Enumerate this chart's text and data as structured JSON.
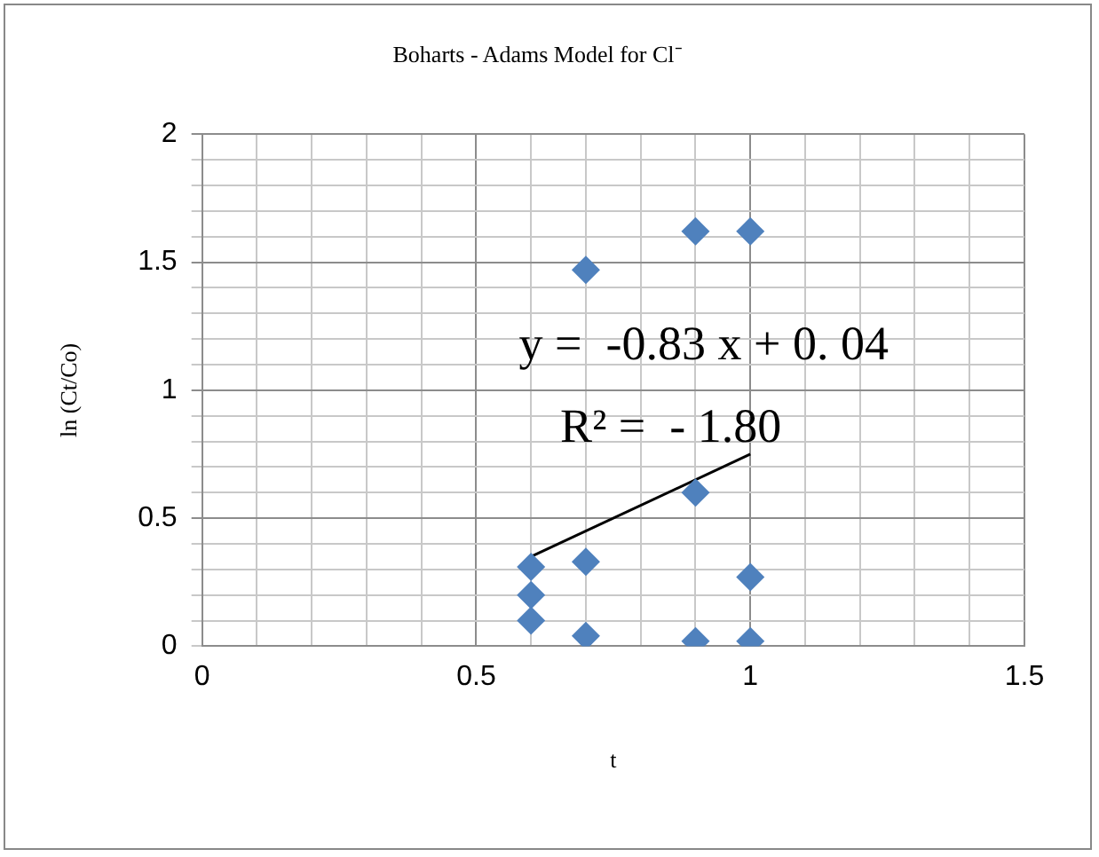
{
  "chart_data": {
    "type": "scatter",
    "title": "Boharts - Adams Model for Cl⁻",
    "xlabel": "t",
    "ylabel": "ln (Ct/Co)",
    "series": [
      {
        "color": "#4f81bd",
        "x": [
          0.6,
          0.6,
          0.6,
          0.7,
          0.7,
          0.7,
          0.9,
          0.9,
          0.9,
          1.0,
          1.0,
          1.0
        ],
        "values": [
          0.31,
          0.2,
          0.1,
          1.47,
          0.33,
          0.04,
          1.62,
          0.6,
          0.02,
          1.62,
          0.27,
          0.02
        ]
      },
      {
        "type": "line",
        "color": "#000000",
        "x": [
          0.6,
          1.0
        ],
        "values": [
          0.35,
          0.75
        ],
        "marker": "none"
      }
    ],
    "marker": "diamond",
    "annotations": [
      "y =  -0.83 x + 0. 04",
      "R² =  - 1.80"
    ],
    "xlim": [
      0,
      1.5
    ],
    "xticks": [
      0,
      {
        "value": 0.1,
        "label": null
      },
      {
        "value": 0.2,
        "label": null
      },
      {
        "value": 0.3,
        "label": null
      },
      {
        "value": 0.4,
        "label": null
      },
      0.5,
      {
        "value": 0.6,
        "label": null
      },
      {
        "value": 0.7,
        "label": null
      },
      {
        "value": 0.8,
        "label": null
      },
      {
        "value": 0.9,
        "label": null
      },
      1,
      {
        "value": 1.1,
        "label": null
      },
      {
        "value": 1.2,
        "label": null
      },
      {
        "value": 1.3,
        "label": null
      },
      {
        "value": 1.4,
        "label": null
      },
      1.5
    ],
    "ylim": [
      0,
      2
    ],
    "yticks": [
      0,
      {
        "value": 0.1,
        "label": null
      },
      {
        "value": 0.2,
        "label": null
      },
      {
        "value": 0.3,
        "label": null
      },
      {
        "value": 0.4,
        "label": null
      },
      0.5,
      {
        "value": 0.6,
        "label": null
      },
      {
        "value": 0.7,
        "label": null
      },
      {
        "value": 0.8,
        "label": null
      },
      {
        "value": 0.9,
        "label": null
      },
      1,
      {
        "value": 1.1,
        "label": null
      },
      {
        "value": 1.2,
        "label": null
      },
      {
        "value": 1.3,
        "label": null
      },
      {
        "value": 1.4,
        "label": null
      },
      1.5,
      {
        "value": 1.6,
        "label": null
      },
      {
        "value": 1.7,
        "label": null
      },
      {
        "value": 1.8,
        "label": null
      },
      {
        "value": 1.9,
        "label": null
      },
      2
    ],
    "grid": true,
    "legend": false
  }
}
